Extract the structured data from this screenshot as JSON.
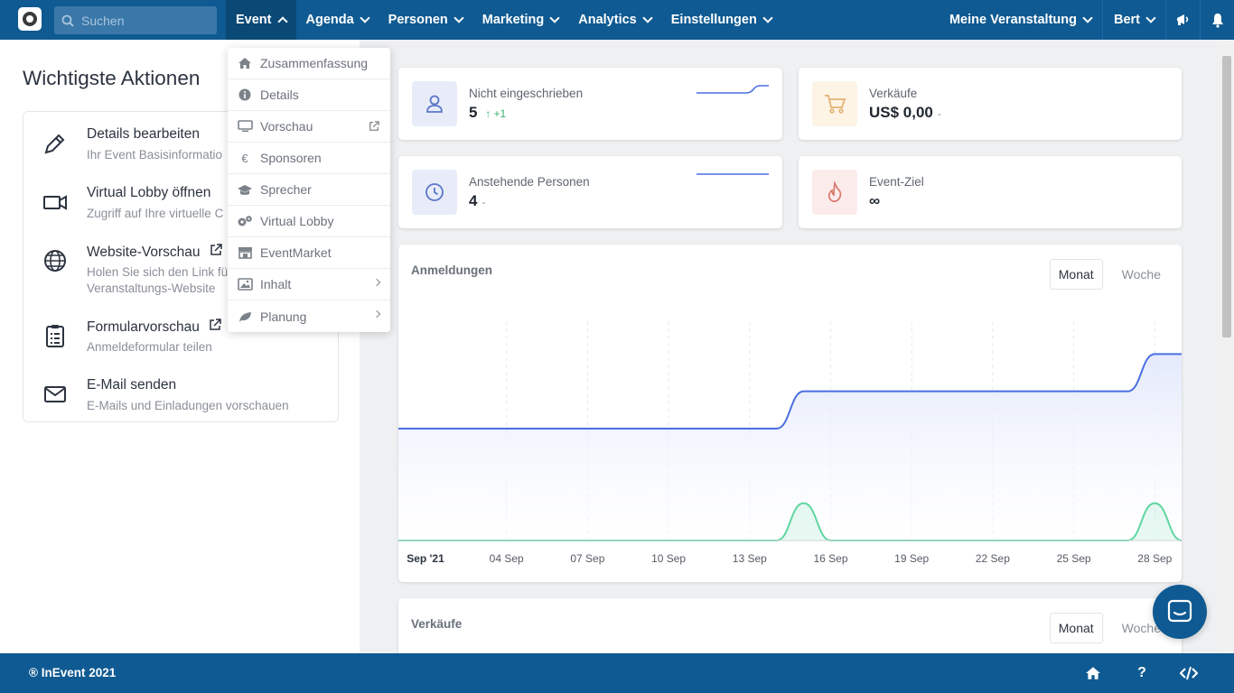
{
  "header": {
    "search_placeholder": "Suchen",
    "nav": [
      {
        "label": "Event",
        "active": true
      },
      {
        "label": "Agenda"
      },
      {
        "label": "Personen"
      },
      {
        "label": "Marketing"
      },
      {
        "label": "Analytics"
      },
      {
        "label": "Einstellungen"
      }
    ],
    "event_selector": "Meine Veranstaltung",
    "user": "Bert",
    "icons": [
      "megaphone-icon",
      "bell-icon"
    ]
  },
  "left": {
    "title": "Wichtigste Aktionen",
    "actions": [
      {
        "title": "Details bearbeiten",
        "sub": "Ihr Event Basisinformatio",
        "icon": "pencil-icon"
      },
      {
        "title": "Virtual Lobby öffnen",
        "sub": "Zugriff auf Ihre virtuelle C",
        "icon": "video-camera-icon"
      },
      {
        "title": "Website-Vorschau",
        "sub": "Holen Sie sich den Link fü",
        "sub2": "Veranstaltungs-Website",
        "icon": "globe-icon"
      },
      {
        "title": "Formularvorschau",
        "sub": "Anmeldeformular teilen",
        "icon": "clipboard-icon"
      },
      {
        "title": "E-Mail senden",
        "sub": "E-Mails und Einladungen vorschauen",
        "icon": "envelope-icon"
      }
    ]
  },
  "dropdown": {
    "items": [
      {
        "label": "Zusammenfassung",
        "icon": "home-icon"
      },
      {
        "label": "Details",
        "icon": "info-icon"
      },
      {
        "label": "Vorschau",
        "icon": "monitor-icon",
        "external": true
      },
      {
        "label": "Sponsoren",
        "icon": "euro-icon"
      },
      {
        "label": "Sprecher",
        "icon": "graduation-cap-icon"
      },
      {
        "label": "Virtual Lobby",
        "icon": "cogs-icon"
      },
      {
        "label": "EventMarket",
        "icon": "store-icon"
      },
      {
        "label": "Inhalt",
        "icon": "image-icon",
        "submenu": true
      },
      {
        "label": "Planung",
        "icon": "leaf-icon",
        "submenu": true
      }
    ]
  },
  "stats": {
    "not_registered": {
      "label": "Nicht eingeschrieben",
      "value": "5",
      "delta": "+1",
      "icon": "user-icon"
    },
    "sales": {
      "label": "Verkäufe",
      "value": "US$ 0,00",
      "dash": "-",
      "icon": "cart-icon"
    },
    "pending": {
      "label": "Anstehende Personen",
      "value": "4",
      "dash": "-",
      "icon": "clock-icon"
    },
    "goal": {
      "label": "Event-Ziel",
      "value": "∞",
      "icon": "flame-icon"
    }
  },
  "registrations": {
    "title": "Anmeldungen",
    "toggle": [
      "Monat",
      "Woche"
    ],
    "selected": "Monat"
  },
  "sales_chart": {
    "title": "Verkäufe",
    "toggle": [
      "Monat",
      "Woche"
    ]
  },
  "chart_data": {
    "type": "area",
    "title": "Anmeldungen",
    "x_ticks": [
      "Sep '21",
      "04 Sep",
      "07 Sep",
      "10 Sep",
      "13 Sep",
      "16 Sep",
      "19 Sep",
      "22 Sep",
      "25 Sep",
      "28 Sep"
    ],
    "x_dates": [
      "2021-09-01",
      "2021-09-14",
      "2021-09-15",
      "2021-09-16",
      "2021-09-27",
      "2021-09-28",
      "2021-09-29",
      "2021-09-30"
    ],
    "series": [
      {
        "color": "#4a6fe0",
        "type": "area",
        "values": [
          3,
          3,
          4,
          4,
          4,
          5,
          5,
          5
        ]
      },
      {
        "color": "#5fd6a0",
        "type": "line",
        "values": [
          0,
          0,
          1,
          0,
          0,
          1,
          0,
          0
        ]
      }
    ],
    "ylim": [
      0,
      6
    ]
  },
  "footer": {
    "copyright": "® InEvent 2021",
    "help": "?"
  },
  "colors": {
    "brand": "#0f5a92",
    "accent_line": "#4a6fe0",
    "accent_green": "#5fd6a0"
  }
}
